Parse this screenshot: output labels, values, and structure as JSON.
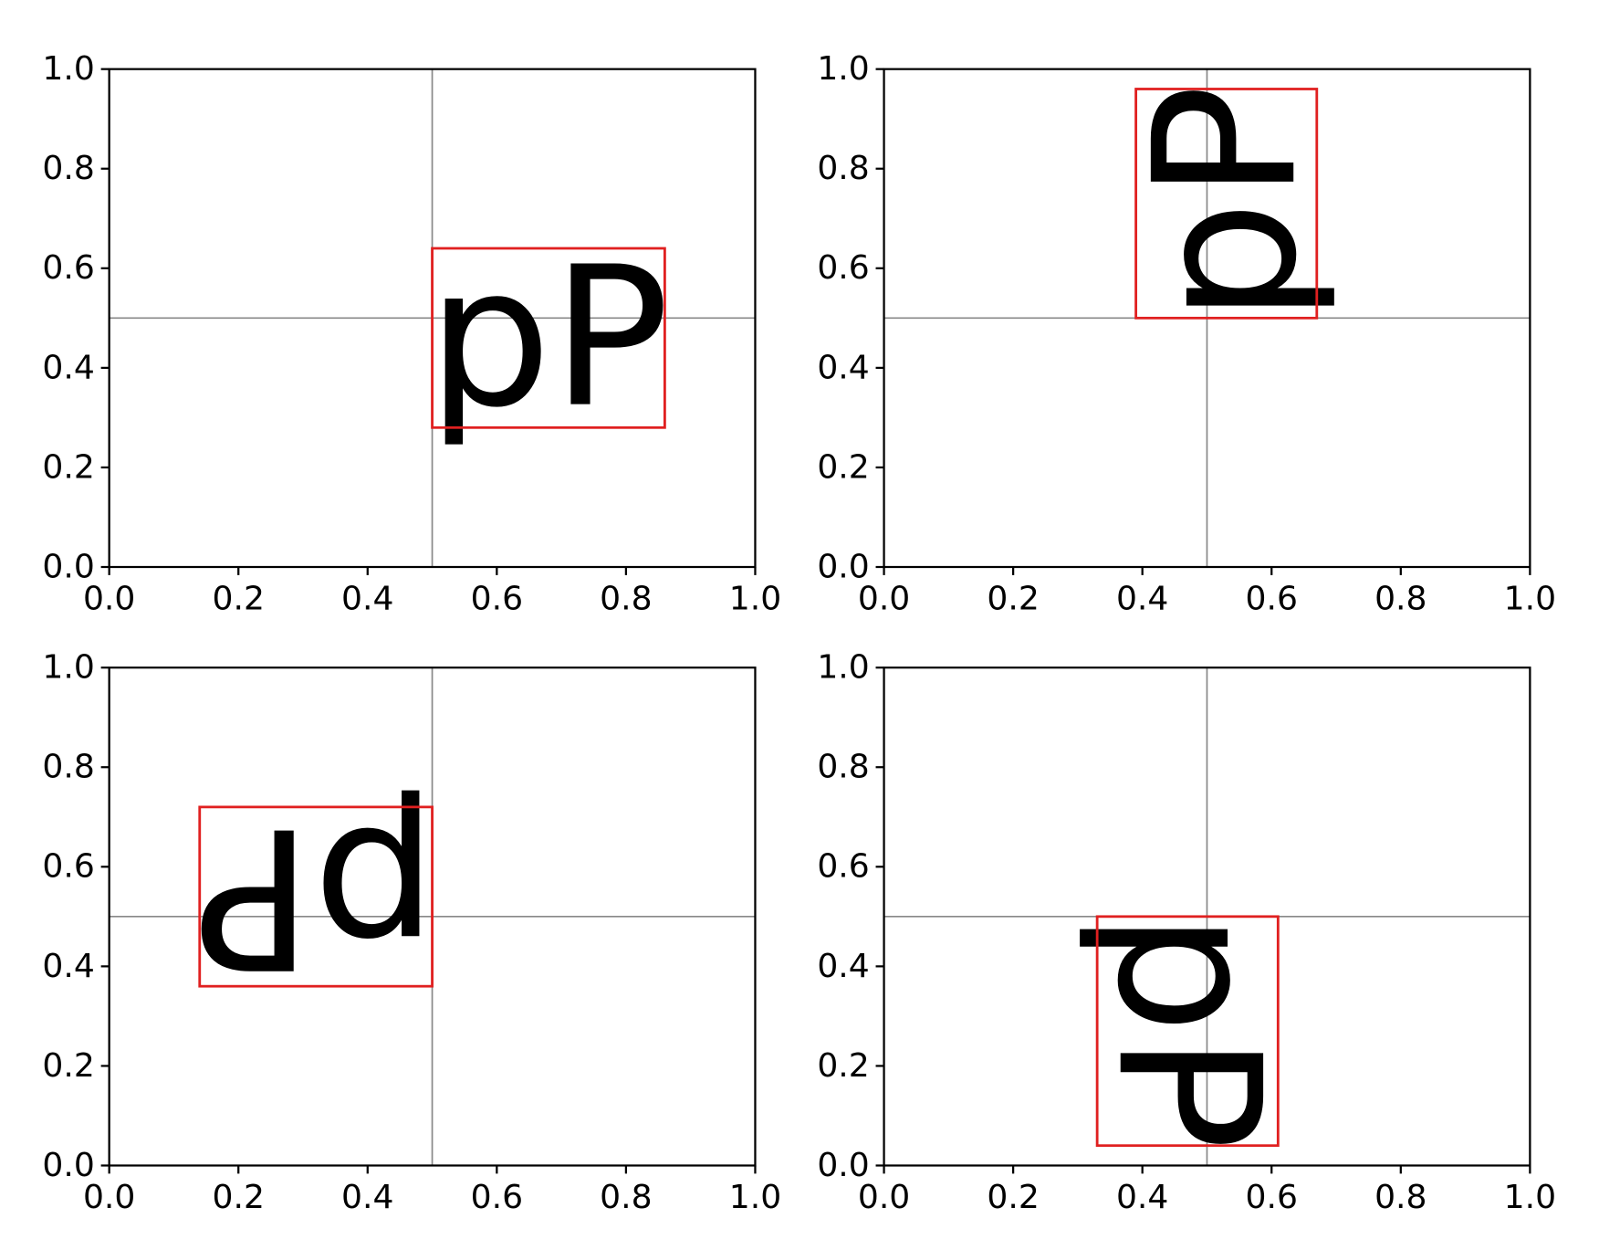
{
  "chart_data": [
    {
      "type": "text_box",
      "text": "pP",
      "rotation": 0,
      "box": {
        "x": [
          0.5,
          0.86
        ],
        "y": [
          0.28,
          0.64
        ]
      },
      "box_color": "#e02020",
      "vline": 0.5,
      "hline": 0.5,
      "line_color": "#888888",
      "xlim": [
        0,
        1
      ],
      "ylim": [
        0,
        1
      ],
      "xticks": [
        {
          "value": 0,
          "label": "0.0"
        },
        {
          "value": 0.2,
          "label": "0.2"
        },
        {
          "value": 0.4,
          "label": "0.4"
        },
        {
          "value": 0.6,
          "label": "0.6"
        },
        {
          "value": 0.8,
          "label": "0.8"
        },
        {
          "value": 1,
          "label": "1.0"
        }
      ],
      "yticks": [
        {
          "value": 0,
          "label": "0.0"
        },
        {
          "value": 0.2,
          "label": "0.2"
        },
        {
          "value": 0.4,
          "label": "0.4"
        },
        {
          "value": 0.6,
          "label": "0.6"
        },
        {
          "value": 0.8,
          "label": "0.8"
        },
        {
          "value": 1,
          "label": "1.0"
        }
      ]
    },
    {
      "type": "text_box",
      "text": "pP",
      "rotation": 90,
      "box": {
        "x": [
          0.39,
          0.67
        ],
        "y": [
          0.5,
          0.96
        ]
      },
      "box_color": "#e02020",
      "vline": 0.5,
      "hline": 0.5,
      "line_color": "#888888",
      "xlim": [
        0,
        1
      ],
      "ylim": [
        0,
        1
      ],
      "xticks": [
        {
          "value": 0,
          "label": "0.0"
        },
        {
          "value": 0.2,
          "label": "0.2"
        },
        {
          "value": 0.4,
          "label": "0.4"
        },
        {
          "value": 0.6,
          "label": "0.6"
        },
        {
          "value": 0.8,
          "label": "0.8"
        },
        {
          "value": 1,
          "label": "1.0"
        }
      ],
      "yticks": [
        {
          "value": 0,
          "label": "0.0"
        },
        {
          "value": 0.2,
          "label": "0.2"
        },
        {
          "value": 0.4,
          "label": "0.4"
        },
        {
          "value": 0.6,
          "label": "0.6"
        },
        {
          "value": 0.8,
          "label": "0.8"
        },
        {
          "value": 1,
          "label": "1.0"
        }
      ]
    },
    {
      "type": "text_box",
      "text": "pP",
      "rotation": 180,
      "box": {
        "x": [
          0.14,
          0.5
        ],
        "y": [
          0.36,
          0.72
        ]
      },
      "box_color": "#e02020",
      "vline": 0.5,
      "hline": 0.5,
      "line_color": "#888888",
      "xlim": [
        0,
        1
      ],
      "ylim": [
        0,
        1
      ],
      "xticks": [
        {
          "value": 0,
          "label": "0.0"
        },
        {
          "value": 0.2,
          "label": "0.2"
        },
        {
          "value": 0.4,
          "label": "0.4"
        },
        {
          "value": 0.6,
          "label": "0.6"
        },
        {
          "value": 0.8,
          "label": "0.8"
        },
        {
          "value": 1,
          "label": "1.0"
        }
      ],
      "yticks": [
        {
          "value": 0,
          "label": "0.0"
        },
        {
          "value": 0.2,
          "label": "0.2"
        },
        {
          "value": 0.4,
          "label": "0.4"
        },
        {
          "value": 0.6,
          "label": "0.6"
        },
        {
          "value": 0.8,
          "label": "0.8"
        },
        {
          "value": 1,
          "label": "1.0"
        }
      ]
    },
    {
      "type": "text_box",
      "text": "pP",
      "rotation": 270,
      "box": {
        "x": [
          0.33,
          0.61
        ],
        "y": [
          0.04,
          0.5
        ]
      },
      "box_color": "#e02020",
      "vline": 0.5,
      "hline": 0.5,
      "line_color": "#888888",
      "xlim": [
        0,
        1
      ],
      "ylim": [
        0,
        1
      ],
      "xticks": [
        {
          "value": 0,
          "label": "0.0"
        },
        {
          "value": 0.2,
          "label": "0.2"
        },
        {
          "value": 0.4,
          "label": "0.4"
        },
        {
          "value": 0.6,
          "label": "0.6"
        },
        {
          "value": 0.8,
          "label": "0.8"
        },
        {
          "value": 1,
          "label": "1.0"
        }
      ],
      "yticks": [
        {
          "value": 0,
          "label": "0.0"
        },
        {
          "value": 0.2,
          "label": "0.2"
        },
        {
          "value": 0.4,
          "label": "0.4"
        },
        {
          "value": 0.6,
          "label": "0.6"
        },
        {
          "value": 0.8,
          "label": "0.8"
        },
        {
          "value": 1,
          "label": "1.0"
        }
      ]
    }
  ]
}
